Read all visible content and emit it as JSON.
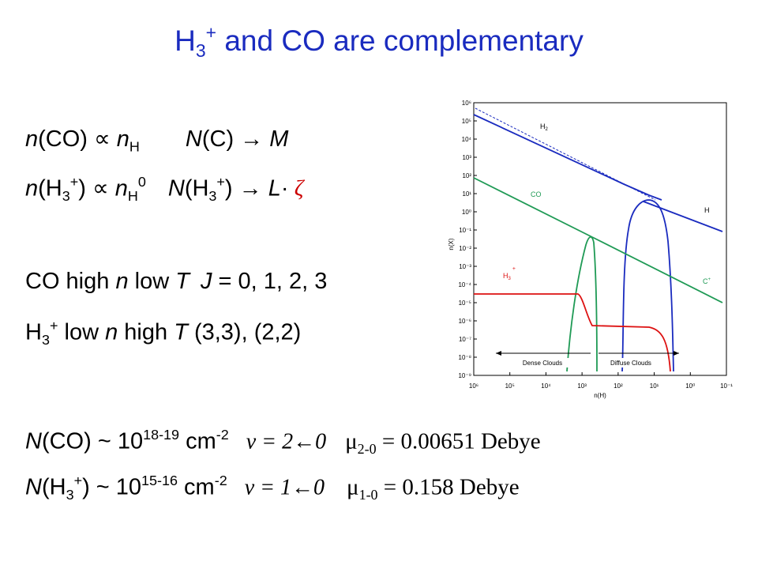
{
  "title": {
    "base": "H",
    "sub": "3",
    "sup": "+",
    "rest": " and CO are complementary"
  },
  "l1": {
    "a": "n",
    "b": "(CO)  ",
    "prop": "∝",
    "c": " n",
    "csub": "H",
    "d": "N",
    "e": "(C) → ",
    "f": "M"
  },
  "l2": {
    "a": "n",
    "b": "(H",
    "bsub": "3",
    "bsup": "+",
    "c": ") ",
    "prop": "∝",
    "d": " n",
    "dsub": "H",
    "dsup": "0",
    "e": "N",
    "f": "(H",
    "fsub": "3",
    "fsup": "+",
    "g": ") → ",
    "h": "L",
    "dot": "·",
    "zeta": " ζ"
  },
  "l3": {
    "a": "CO   high ",
    "n": "n",
    "b": "  low ",
    "T": "T",
    "J": "J",
    "c": " = 0, 1, 2, 3"
  },
  "l4": {
    "a": "H",
    "asub": "3",
    "asup": "+",
    "b": "  low ",
    "n": "n",
    "c": "   high ",
    "T": "T",
    "d": "   (3,3), (2,2)"
  },
  "l5": {
    "N": "N",
    "a": "(CO) ~ 10",
    "exp": "18-19",
    "b": " cm",
    "bexp": "-2",
    "v": "v = 2←0",
    "mu": "μ",
    "musub": "2-0",
    "val": " = 0.00651 Debye"
  },
  "l6": {
    "N": "N",
    "a": "(H",
    "asub": "3",
    "asup": "+",
    "b": ") ~ 10",
    "exp": "15-16",
    "c": " cm",
    "cexp": "-2",
    "v": "v = 1←0",
    "mu": "μ",
    "musub": "1-0",
    "val": " = 0.158 Debye"
  },
  "chart_data": {
    "type": "line",
    "ylabel": "n(X)",
    "xlabel": "n(H)",
    "y_ticks": [
      "10⁶",
      "10⁵",
      "10⁴",
      "10³",
      "10²",
      "10¹",
      "10⁰",
      "10⁻¹",
      "10⁻²",
      "10⁻³",
      "10⁻⁴",
      "10⁻⁵",
      "10⁻⁶",
      "10⁻⁷",
      "10⁻⁸",
      "10⁻⁹"
    ],
    "x_ticks": [
      "10⁶",
      "10⁵",
      "10⁴",
      "10³",
      "10²",
      "10¹",
      "10⁰",
      "10⁻¹"
    ],
    "series_labels": {
      "H2": "H",
      "H2sub": "2",
      "CO": "CO",
      "H": "H",
      "Cplus": "C",
      "Cplus_sup": "+",
      "H3plus": "H",
      "H3sub": "3",
      "H3sup": "+"
    },
    "annotations": {
      "dense": "Dense Clouds",
      "diffuse": "Diffuse Clouds"
    },
    "colors": {
      "H2": "#1a2bbf",
      "H": "#1a2bbf",
      "CO": "#1f9a55",
      "Cplus": "#1f9a55",
      "H3plus": "#dd1111"
    }
  }
}
